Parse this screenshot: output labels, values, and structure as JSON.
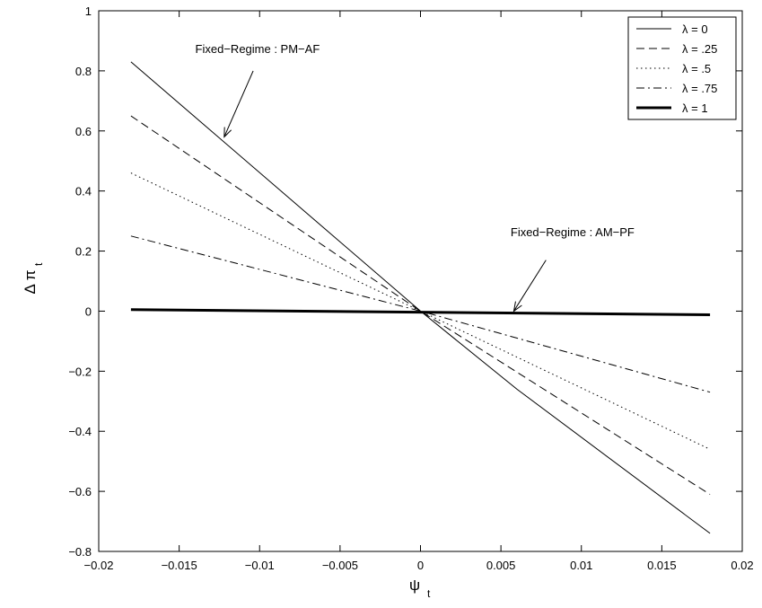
{
  "chart_data": {
    "type": "line",
    "title": "",
    "xlabel": "ψ",
    "xlabel_sub": "t",
    "ylabel": "Δ π",
    "ylabel_sub": "t",
    "xlim": [
      -0.02,
      0.02
    ],
    "ylim": [
      -0.8,
      1
    ],
    "xticks": [
      -0.02,
      -0.015,
      -0.01,
      -0.005,
      0,
      0.005,
      0.01,
      0.015,
      0.02
    ],
    "xtick_labels": [
      "−0.02",
      "−0.015",
      "−0.01",
      "−0.005",
      "0",
      "0.005",
      "0.01",
      "0.015",
      "0.02"
    ],
    "yticks": [
      -0.8,
      -0.6,
      -0.4,
      -0.2,
      0,
      0.2,
      0.4,
      0.6,
      0.8,
      1
    ],
    "ytick_labels": [
      "−0.8",
      "−0.6",
      "−0.4",
      "−0.2",
      "0",
      "0.2",
      "0.4",
      "0.6",
      "0.8",
      "1"
    ],
    "grid": false,
    "legend_position": "top-right",
    "series": [
      {
        "name": "λ = 0",
        "style": "solid",
        "width": 1,
        "points": [
          [
            -0.018,
            0.83
          ],
          [
            0.0,
            0.0
          ],
          [
            0.006,
            -0.26
          ],
          [
            0.018,
            -0.74
          ]
        ]
      },
      {
        "name": "λ = .25",
        "style": "dashed",
        "width": 1,
        "points": [
          [
            -0.018,
            0.65
          ],
          [
            0.0,
            0.0
          ],
          [
            0.018,
            -0.61
          ]
        ]
      },
      {
        "name": "λ = .5",
        "style": "dotted",
        "width": 1,
        "points": [
          [
            -0.018,
            0.46
          ],
          [
            0.0,
            0.0
          ],
          [
            0.018,
            -0.46
          ]
        ]
      },
      {
        "name": "λ = .75",
        "style": "dashdot",
        "width": 1,
        "points": [
          [
            -0.018,
            0.25
          ],
          [
            0.0,
            0.0
          ],
          [
            0.018,
            -0.27
          ]
        ]
      },
      {
        "name": "λ = 1",
        "style": "solid",
        "width": 3,
        "points": [
          [
            -0.018,
            0.005
          ],
          [
            0.018,
            -0.012
          ]
        ]
      }
    ],
    "annotations": [
      {
        "text": "Fixed−Regime : PM−AF",
        "text_at": [
          -0.014,
          0.86
        ],
        "arrow_from": [
          -0.0104,
          0.8
        ],
        "arrow_to": [
          -0.0122,
          0.58
        ]
      },
      {
        "text": "Fixed−Regime : AM−PF",
        "text_at": [
          0.0056,
          0.25
        ],
        "arrow_from": [
          0.0078,
          0.17
        ],
        "arrow_to": [
          0.0058,
          0.0
        ]
      }
    ]
  }
}
